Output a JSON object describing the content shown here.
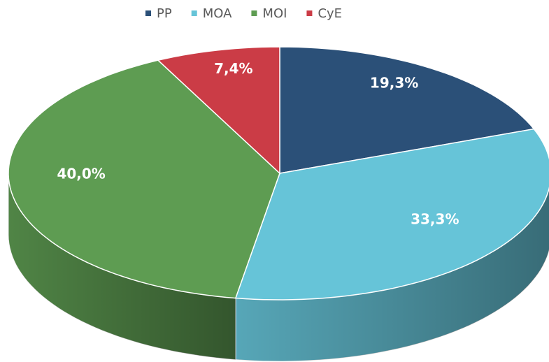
{
  "chart_data": {
    "type": "pie",
    "categories": [
      "PP",
      "MOA",
      "MOI",
      "CyE"
    ],
    "values": [
      19.3,
      33.3,
      40.0,
      7.4
    ],
    "value_labels": [
      "19,3%",
      "33,3%",
      "40,0%",
      "7,4%"
    ],
    "colors": [
      "#2b5078",
      "#66c4d8",
      "#5e9c52",
      "#cb3c46"
    ],
    "legend": "top"
  }
}
